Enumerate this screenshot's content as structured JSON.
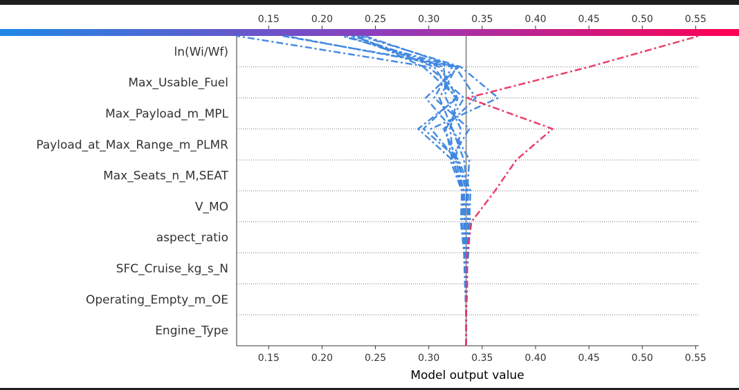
{
  "chart_data": {
    "type": "line",
    "subtype": "shap-decision-plot",
    "xlabel": "Model output value",
    "base_value": 0.335,
    "xlim": [
      0.12,
      0.553
    ],
    "xticks": [
      0.15,
      0.2,
      0.25,
      0.3,
      0.35,
      0.4,
      0.45,
      0.5,
      0.55
    ],
    "xtick_labels": [
      "0.15",
      "0.20",
      "0.25",
      "0.30",
      "0.35",
      "0.40",
      "0.45",
      "0.50",
      "0.55"
    ],
    "features": [
      "ln(Wi/Wf)",
      "Max_Usable_Fuel",
      "Max_Payload_m_MPL",
      "Payload_at_Max_Range_m_PLMR",
      "Max_Seats_n_M,SEAT",
      "V_MO",
      "aspect_ratio",
      "SFC_Cruise_kg_s_N",
      "Operating_Empty_m_OE",
      "Engine_Type"
    ],
    "colormap": [
      "#1e88e5",
      "#7c4dcc",
      "#c2189e",
      "#ff0052"
    ],
    "grid": true,
    "series": [
      {
        "color": "#e8335f",
        "values": [
          0.335,
          0.335,
          0.336,
          0.336,
          0.34,
          0.362,
          0.382,
          0.416,
          0.336,
          0.45,
          0.553
        ]
      },
      {
        "color": "#3c85e0",
        "values": [
          0.335,
          0.335,
          0.335,
          0.336,
          0.337,
          0.336,
          0.338,
          0.322,
          0.297,
          0.328,
          0.163
        ]
      },
      {
        "color": "#3c85e0",
        "values": [
          0.335,
          0.335,
          0.334,
          0.333,
          0.33,
          0.331,
          0.32,
          0.338,
          0.305,
          0.322,
          0.166
        ]
      },
      {
        "color": "#3c85e0",
        "values": [
          0.335,
          0.335,
          0.335,
          0.337,
          0.339,
          0.335,
          0.327,
          0.314,
          0.344,
          0.325,
          0.218
        ]
      },
      {
        "color": "#3c85e0",
        "values": [
          0.335,
          0.335,
          0.336,
          0.336,
          0.338,
          0.339,
          0.328,
          0.295,
          0.325,
          0.305,
          0.23
        ]
      },
      {
        "color": "#3c85e0",
        "values": [
          0.335,
          0.335,
          0.335,
          0.336,
          0.336,
          0.337,
          0.326,
          0.302,
          0.365,
          0.33,
          0.236
        ]
      },
      {
        "color": "#3c85e0",
        "values": [
          0.335,
          0.335,
          0.334,
          0.334,
          0.333,
          0.333,
          0.325,
          0.33,
          0.316,
          0.314,
          0.228
        ]
      },
      {
        "color": "#3c85e0",
        "values": [
          0.335,
          0.335,
          0.335,
          0.335,
          0.334,
          0.333,
          0.322,
          0.29,
          0.327,
          0.31,
          0.222
        ]
      },
      {
        "color": "#3c85e0",
        "values": [
          0.335,
          0.335,
          0.335,
          0.337,
          0.333,
          0.336,
          0.333,
          0.322,
          0.31,
          0.326,
          0.24
        ]
      },
      {
        "color": "#3c85e0",
        "values": [
          0.335,
          0.335,
          0.334,
          0.333,
          0.334,
          0.331,
          0.323,
          0.32,
          0.327,
          0.295,
          0.233
        ]
      },
      {
        "color": "#3c85e0",
        "values": [
          0.335,
          0.335,
          0.335,
          0.334,
          0.331,
          0.333,
          0.322,
          0.316,
          0.333,
          0.3,
          0.12
        ]
      }
    ]
  }
}
